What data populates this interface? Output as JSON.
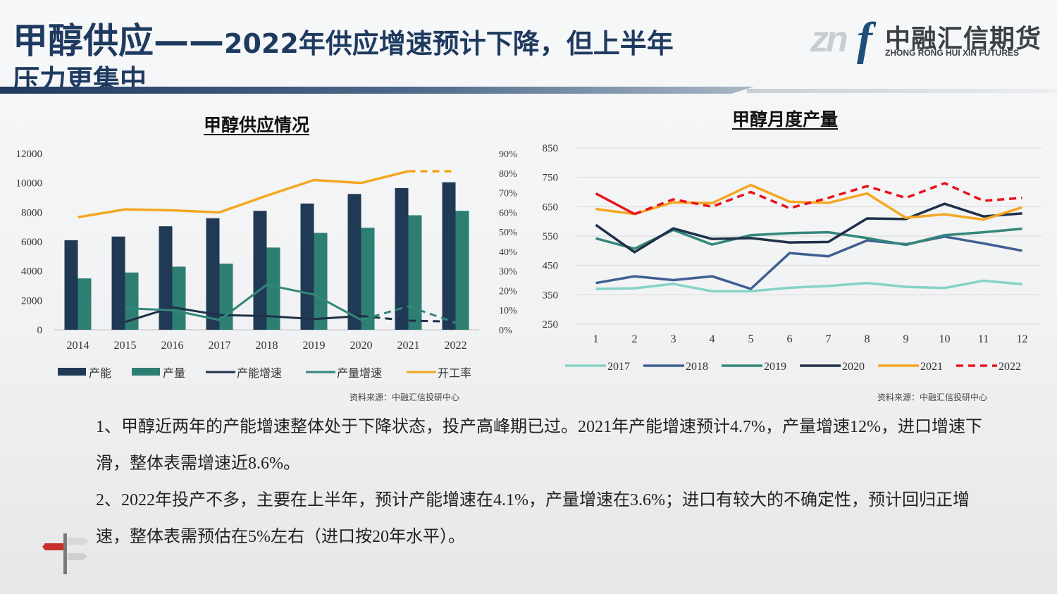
{
  "header": {
    "title_main": "甲醇供应",
    "title_dash": "——",
    "title_sub": "2022年供应增速预计下降，但上半年",
    "title_line2": "压力更集中"
  },
  "logo": {
    "mark_zn": "zn",
    "mark_f": "f",
    "name_cn": "中融汇信期货",
    "name_en": "ZHONG RONG HUI XIN FUTURES"
  },
  "colors": {
    "navy": "#203a55",
    "teal": "#2e7f73",
    "orange": "#f4a720",
    "red": "#e8141b",
    "blue": "#3f5f93",
    "mint": "#86d3c6",
    "green": "#34867a",
    "dark": "#1f3048"
  },
  "chart_data": [
    {
      "type": "bar",
      "title": "甲醇供应情况",
      "categories": [
        "2014",
        "2015",
        "2016",
        "2017",
        "2018",
        "2019",
        "2020",
        "2021",
        "2022"
      ],
      "y_left": {
        "ylim": [
          0,
          12000
        ],
        "ticks": [
          "0",
          "2000",
          "4000",
          "6000",
          "8000",
          "10000",
          "12000"
        ]
      },
      "y_right": {
        "ylim": [
          0,
          0.9
        ],
        "ticks": [
          "0%",
          "10%",
          "20%",
          "30%",
          "40%",
          "50%",
          "60%",
          "70%",
          "80%",
          "90%"
        ]
      },
      "series": [
        {
          "name": "产能",
          "type": "bar",
          "axis": "left",
          "values": [
            6100,
            6350,
            7050,
            7600,
            8100,
            8600,
            9250,
            9650,
            10050
          ]
        },
        {
          "name": "产量",
          "type": "bar",
          "axis": "left",
          "values": [
            3500,
            3900,
            4300,
            4500,
            5600,
            6600,
            6950,
            7800,
            8100
          ]
        },
        {
          "name": "产能增速",
          "type": "line",
          "axis": "right",
          "values": [
            null,
            0.04,
            0.115,
            0.075,
            0.07,
            0.055,
            0.07,
            0.047,
            0.041
          ],
          "dashed_from": "2020"
        },
        {
          "name": "产量增速",
          "type": "line",
          "axis": "right",
          "values": [
            null,
            0.11,
            0.1,
            0.05,
            0.23,
            0.18,
            0.05,
            0.12,
            0.036
          ],
          "dashed_from": "2020"
        },
        {
          "name": "开工率",
          "type": "line",
          "axis": "right",
          "values": [
            0.575,
            0.615,
            0.61,
            0.6,
            0.685,
            0.765,
            0.75,
            0.81,
            0.81
          ],
          "dashed_from": "2021"
        }
      ],
      "source": "资料来源：中融汇信投研中心"
    },
    {
      "type": "line",
      "title": "甲醇月度产量",
      "x": [
        "1",
        "2",
        "3",
        "4",
        "5",
        "6",
        "7",
        "8",
        "9",
        "10",
        "11",
        "12"
      ],
      "ylim": [
        250,
        850
      ],
      "y_ticks": [
        "250",
        "350",
        "450",
        "550",
        "650",
        "750",
        "850"
      ],
      "series": [
        {
          "name": "2017",
          "values": [
            370,
            372,
            387,
            362,
            362,
            374,
            380,
            390,
            377,
            373,
            398,
            386
          ]
        },
        {
          "name": "2018",
          "values": [
            390,
            413,
            400,
            413,
            370,
            492,
            481,
            535,
            522,
            548,
            525,
            500
          ]
        },
        {
          "name": "2019",
          "values": [
            542,
            507,
            571,
            521,
            553,
            560,
            563,
            543,
            520,
            553,
            563,
            575
          ]
        },
        {
          "name": "2020",
          "values": [
            588,
            495,
            576,
            540,
            543,
            528,
            530,
            610,
            608,
            660,
            617,
            627
          ]
        },
        {
          "name": "2021",
          "values": [
            642,
            625,
            665,
            662,
            724,
            667,
            663,
            695,
            612,
            624,
            606,
            648
          ]
        },
        {
          "name": "2022",
          "values": [
            695,
            625,
            675,
            650,
            700,
            645,
            680,
            720,
            680,
            730,
            670,
            680
          ],
          "dashed_from": "2"
        }
      ],
      "source": "资料来源：中融汇信投研中心"
    }
  ],
  "notes": [
    "1、甲醇近两年的产能增速整体处于下降状态，投产高峰期已过。2021年产能增速预计4.7%，产量增速12%，进口增速下滑，整体表需增速近8.6%。",
    "2、2022年投产不多，主要在上半年，预计产能增速在4.1%，产量增速在3.6%；进口有较大的不确定性，预计回归正增速，整体表需预估在5%左右（进口按20年水平）。"
  ]
}
